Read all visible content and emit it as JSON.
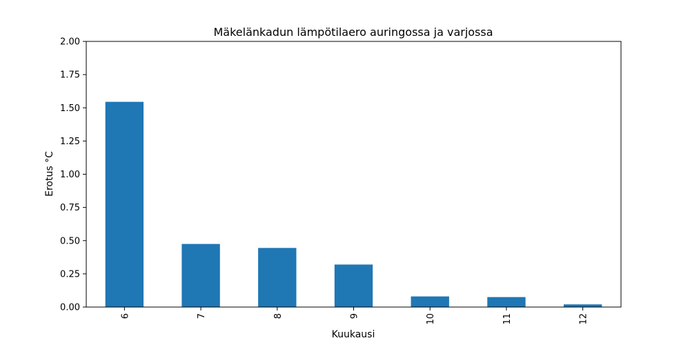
{
  "chart_data": {
    "type": "bar",
    "title": "Mäkelänkadun lämpötilaero auringossa ja varjossa",
    "xlabel": "Kuukausi",
    "ylabel": "Erotus °C",
    "categories": [
      "6",
      "7",
      "8",
      "9",
      "10",
      "11",
      "12"
    ],
    "values": [
      1.545,
      0.475,
      0.445,
      0.32,
      0.08,
      0.075,
      0.02
    ],
    "ylim": [
      0,
      2.0
    ],
    "yticks": [
      "0.00",
      "0.25",
      "0.50",
      "0.75",
      "1.00",
      "1.25",
      "1.50",
      "1.75",
      "2.00"
    ],
    "bar_color": "#1f77b4",
    "grid": false,
    "x_tick_rotation": "vertical"
  }
}
